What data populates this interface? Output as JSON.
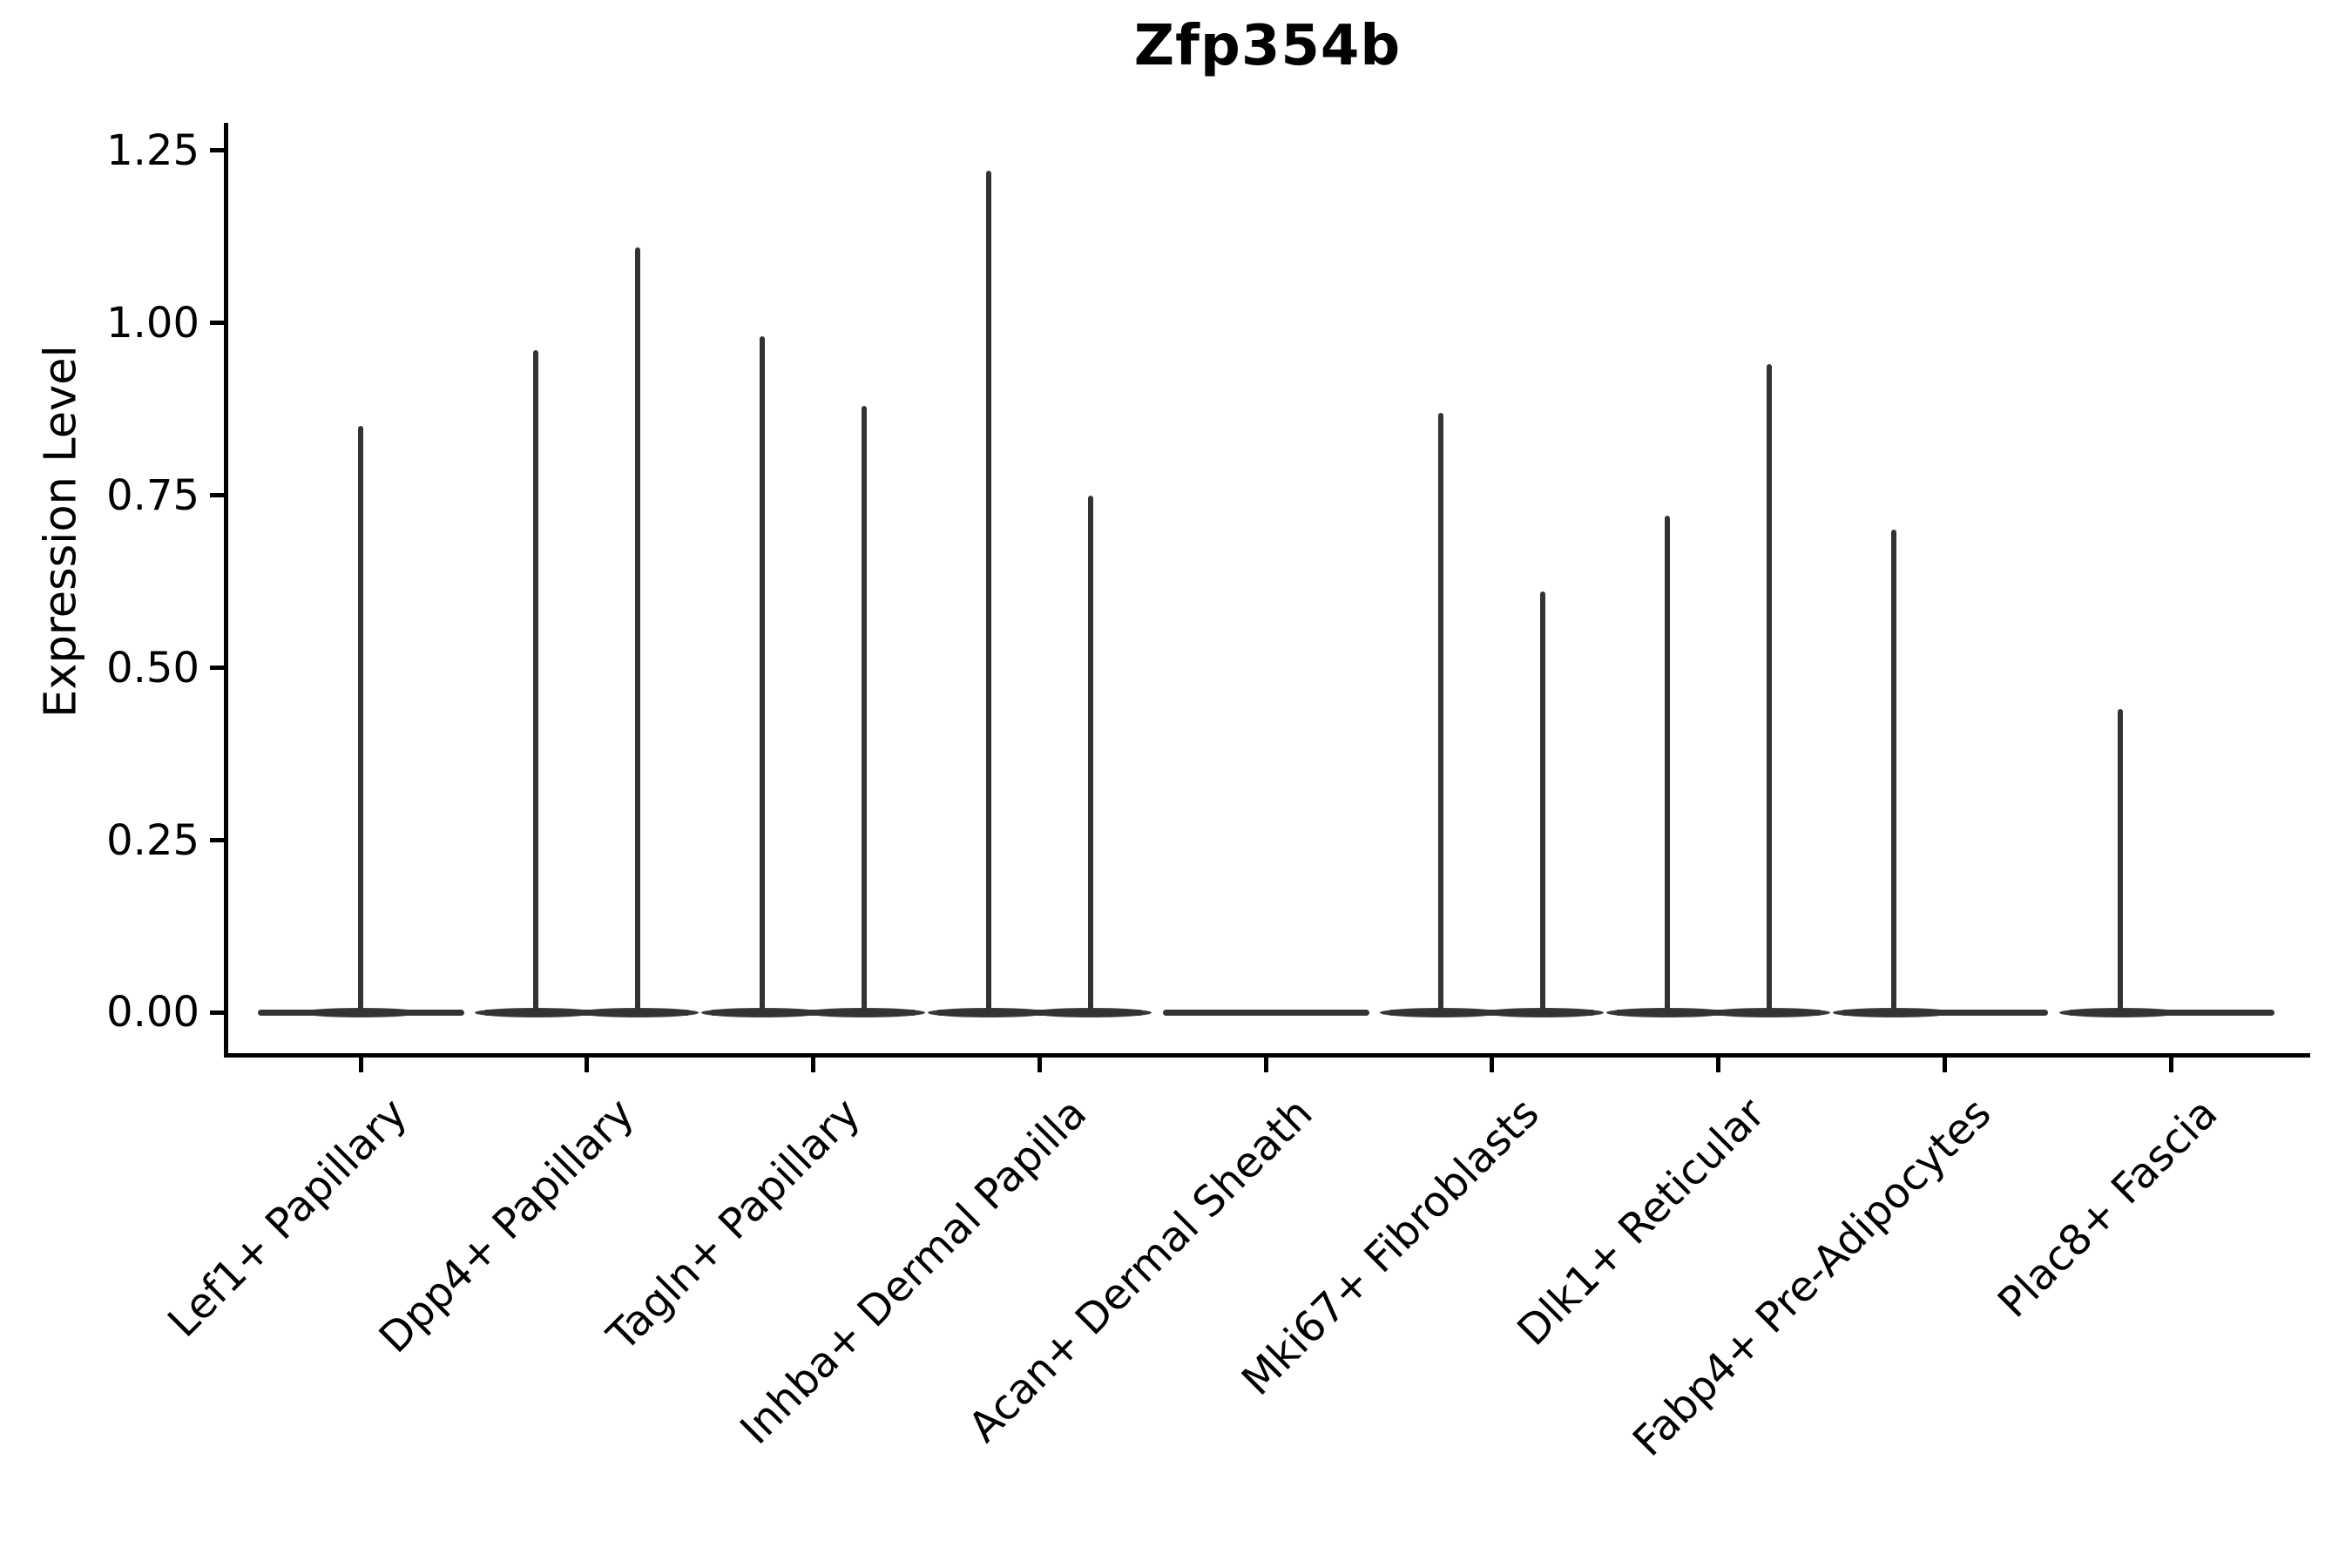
{
  "figure": {
    "title": "Zfp354b"
  },
  "chart_data": {
    "type": "violin",
    "title": "Zfp354b",
    "xlabel": "",
    "ylabel": "Expression Level",
    "ylim": [
      -0.06,
      1.29
    ],
    "yticks": [
      0.0,
      0.25,
      0.5,
      0.75,
      1.0,
      1.25
    ],
    "ytick_labels": [
      "0.00",
      "0.25",
      "0.50",
      "0.75",
      "1.00",
      "1.25"
    ],
    "grid": false,
    "legend": "none",
    "categories": [
      "Lef1+ Papillary",
      "Dpp4+ Papillary",
      "Tagln+ Papillary",
      "Inhba+ Dermal Papilla",
      "Acan+ Dermal Sheath",
      "Mki67+ Fibroblasts",
      "Dlk1+ Reticular",
      "Fabp4+ Pre-Adipocytes",
      "Plac8+ Fascia"
    ],
    "violins": [
      {
        "category": "Lef1+ Papillary",
        "baseline_value": 0,
        "spikes": [
          {
            "dx": 0.0,
            "peak": 0.85
          }
        ]
      },
      {
        "category": "Dpp4+ Papillary",
        "baseline_value": 0,
        "spikes": [
          {
            "dx": -0.225,
            "peak": 0.96
          },
          {
            "dx": 0.225,
            "peak": 1.11
          }
        ]
      },
      {
        "category": "Tagln+ Papillary",
        "baseline_value": 0,
        "spikes": [
          {
            "dx": -0.225,
            "peak": 0.98
          },
          {
            "dx": 0.225,
            "peak": 0.88
          }
        ]
      },
      {
        "category": "Inhba+ Dermal Papilla",
        "baseline_value": 0,
        "spikes": [
          {
            "dx": -0.225,
            "peak": 1.22
          },
          {
            "dx": 0.225,
            "peak": 0.75
          }
        ]
      },
      {
        "category": "Acan+ Dermal Sheath",
        "baseline_value": 0,
        "spikes": []
      },
      {
        "category": "Mki67+ Fibroblasts",
        "baseline_value": 0,
        "spikes": [
          {
            "dx": -0.225,
            "peak": 0.87
          },
          {
            "dx": 0.225,
            "peak": 0.61
          }
        ]
      },
      {
        "category": "Dlk1+ Reticular",
        "baseline_value": 0,
        "spikes": [
          {
            "dx": -0.225,
            "peak": 0.72
          },
          {
            "dx": 0.225,
            "peak": 0.94
          }
        ]
      },
      {
        "category": "Fabp4+ Pre-Adipocytes",
        "baseline_value": 0,
        "spikes": [
          {
            "dx": -0.225,
            "peak": 0.7
          }
        ]
      },
      {
        "category": "Plac8+ Fascia",
        "baseline_value": 0,
        "spikes": [
          {
            "dx": -0.225,
            "peak": 0.44
          }
        ]
      }
    ],
    "colors": {
      "violin": "#333333",
      "violin_base": "#3a3a3a",
      "axis": "#000000",
      "text": "#000000",
      "background": "#ffffff"
    }
  }
}
